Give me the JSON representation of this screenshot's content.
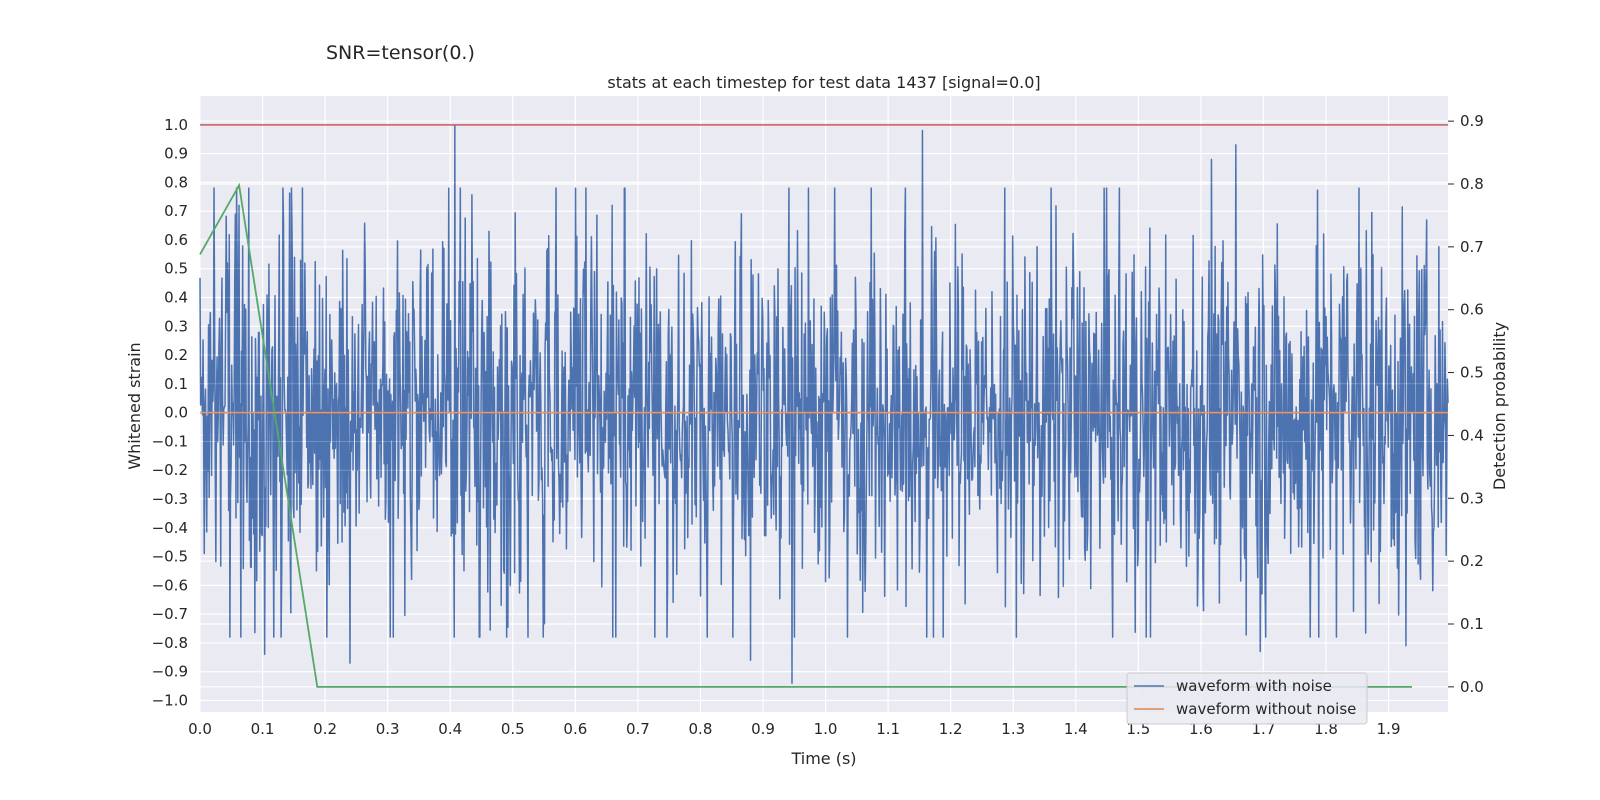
{
  "suptitle": "SNR=tensor(0.)",
  "chart_data": {
    "type": "line",
    "title": "stats at each timestep for test data 1437 [signal=0.0]",
    "xlabel": "Time (s)",
    "ylabel": "Whitened strain",
    "y2label": "Detection probability",
    "xlim": [
      0.0,
      1.995
    ],
    "ylim": [
      -1.04,
      1.1
    ],
    "y2lim": [
      -0.04,
      0.94
    ],
    "xticks": [
      "0.0",
      "0.1",
      "0.2",
      "0.3",
      "0.4",
      "0.5",
      "0.6",
      "0.7",
      "0.8",
      "0.9",
      "1.0",
      "1.1",
      "1.2",
      "1.3",
      "1.4",
      "1.5",
      "1.6",
      "1.7",
      "1.8",
      "1.9"
    ],
    "yticks": [
      "1.0",
      "0.9",
      "0.8",
      "0.7",
      "0.6",
      "0.5",
      "0.4",
      "0.3",
      "0.2",
      "0.1",
      "0.0",
      "−0.1",
      "−0.2",
      "−0.3",
      "−0.4",
      "−0.5",
      "−0.6",
      "−0.7",
      "−0.8",
      "−0.9",
      "−1.0"
    ],
    "y2ticks": [
      "0.9",
      "0.8",
      "0.7",
      "0.6",
      "0.5",
      "0.4",
      "0.3",
      "0.2",
      "0.1",
      "0.0"
    ],
    "grid": true,
    "legend_position": "lower-right",
    "series": [
      {
        "name": "waveform with noise",
        "color": "#4c72b0",
        "axis": "left",
        "kind": "noise",
        "sample_count": 2048,
        "x_range": [
          0.0,
          1.995
        ],
        "peaks": [
          {
            "x": 0.407,
            "y": 1.0
          },
          {
            "x": 1.155,
            "y": 0.98
          },
          {
            "x": 1.656,
            "y": 0.93
          },
          {
            "x": 0.946,
            "y": 0.86
          },
          {
            "x": 1.617,
            "y": 0.88
          },
          {
            "x": 0.062,
            "y": 0.72
          },
          {
            "x": 0.946,
            "y": -0.94
          },
          {
            "x": 0.103,
            "y": -0.84
          },
          {
            "x": 0.24,
            "y": -0.87
          },
          {
            "x": 0.88,
            "y": -0.86
          },
          {
            "x": 1.695,
            "y": -0.83
          },
          {
            "x": 1.928,
            "y": -0.81
          }
        ]
      },
      {
        "name": "waveform without noise",
        "color": "#dd8452",
        "axis": "left",
        "x": [
          0.0,
          1.995
        ],
        "y": [
          0.0,
          0.0
        ]
      },
      {
        "name": "Detection probability",
        "color": "#55a868",
        "axis": "right",
        "x": [
          0.0,
          0.0625,
          0.1875,
          0.25,
          1.9375
        ],
        "y": [
          0.688,
          0.798,
          0.0,
          0.0,
          0.0
        ]
      }
    ],
    "hlines": [
      {
        "y": 1.0,
        "axis": "left",
        "color": "#c44e52"
      }
    ]
  }
}
